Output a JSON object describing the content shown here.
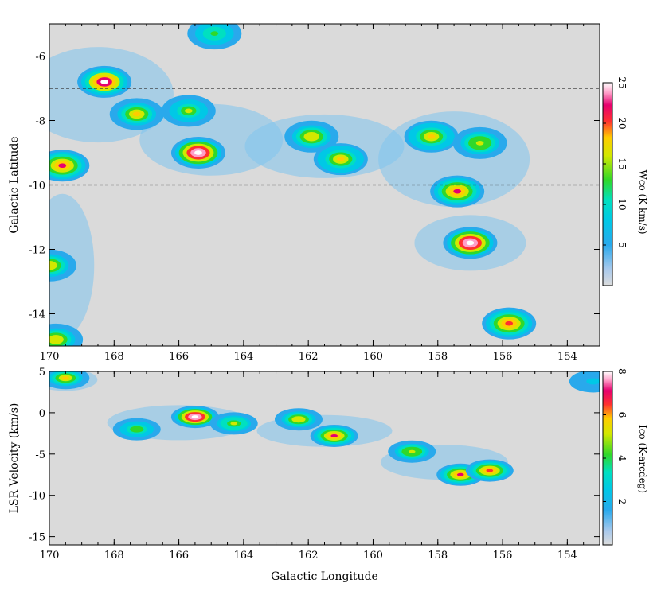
{
  "chart_data": [
    {
      "type": "heatmap",
      "panel": "top",
      "xlabel": "",
      "ylabel": "Galactic Latitude",
      "xlim": [
        170,
        153
      ],
      "ylim": [
        -15,
        -5
      ],
      "xticks": [
        "170",
        "168",
        "166",
        "164",
        "162",
        "160",
        "158",
        "156",
        "154"
      ],
      "yticks": [
        "-6",
        "-8",
        "-10",
        "-12",
        "-14"
      ],
      "colorbar": {
        "label": "Wco (K km/s)",
        "range": [
          0,
          25
        ],
        "ticks": [
          "5",
          "10",
          "15",
          "20",
          "25"
        ]
      },
      "reference_lines_b": [
        -7,
        -10
      ],
      "clouds": [
        {
          "l": 168.3,
          "b": -6.8,
          "peak": 24
        },
        {
          "l": 169.6,
          "b": -9.4,
          "peak": 21
        },
        {
          "l": 167.3,
          "b": -7.8,
          "peak": 17
        },
        {
          "l": 165.7,
          "b": -7.7,
          "peak": 14
        },
        {
          "l": 165.4,
          "b": -9.0,
          "peak": 26
        },
        {
          "l": 164.9,
          "b": -5.3,
          "peak": 12
        },
        {
          "l": 161.9,
          "b": -8.5,
          "peak": 16
        },
        {
          "l": 161.0,
          "b": -9.2,
          "peak": 18
        },
        {
          "l": 158.2,
          "b": -8.5,
          "peak": 18
        },
        {
          "l": 156.7,
          "b": -8.7,
          "peak": 15
        },
        {
          "l": 157.4,
          "b": -10.2,
          "peak": 21
        },
        {
          "l": 157.0,
          "b": -11.8,
          "peak": 26
        },
        {
          "l": 155.8,
          "b": -14.3,
          "peak": 19
        },
        {
          "l": 170.0,
          "b": -12.5,
          "peak": 16
        },
        {
          "l": 169.8,
          "b": -14.8,
          "peak": 16
        }
      ]
    },
    {
      "type": "heatmap",
      "panel": "bottom",
      "xlabel": "Galactic Longitude",
      "ylabel": "LSR Velocity (km/s)",
      "xlim": [
        170,
        153
      ],
      "ylim": [
        -16,
        5
      ],
      "xticks": [
        "170",
        "168",
        "166",
        "164",
        "162",
        "160",
        "158",
        "156",
        "154"
      ],
      "yticks": [
        "5",
        "0",
        "-5",
        "-10",
        "-15"
      ],
      "colorbar": {
        "label": "Ico (K-arcdeg)",
        "range": [
          0,
          8
        ],
        "ticks": [
          "2",
          "4",
          "6",
          "8"
        ]
      },
      "clouds": [
        {
          "l": 169.5,
          "v": 4.2,
          "peak": 5.5
        },
        {
          "l": 165.5,
          "v": -0.5,
          "peak": 8.5
        },
        {
          "l": 167.3,
          "v": -2.0,
          "peak": 4.0
        },
        {
          "l": 164.3,
          "v": -1.3,
          "peak": 4.5
        },
        {
          "l": 162.3,
          "v": -0.8,
          "peak": 5.0
        },
        {
          "l": 161.2,
          "v": -2.8,
          "peak": 6.8
        },
        {
          "l": 158.8,
          "v": -4.7,
          "peak": 4.8
        },
        {
          "l": 157.3,
          "v": -7.5,
          "peak": 6.5
        },
        {
          "l": 156.4,
          "v": -7.0,
          "peak": 6.0
        },
        {
          "l": 153.2,
          "v": 3.8,
          "peak": 2.0
        }
      ]
    }
  ]
}
